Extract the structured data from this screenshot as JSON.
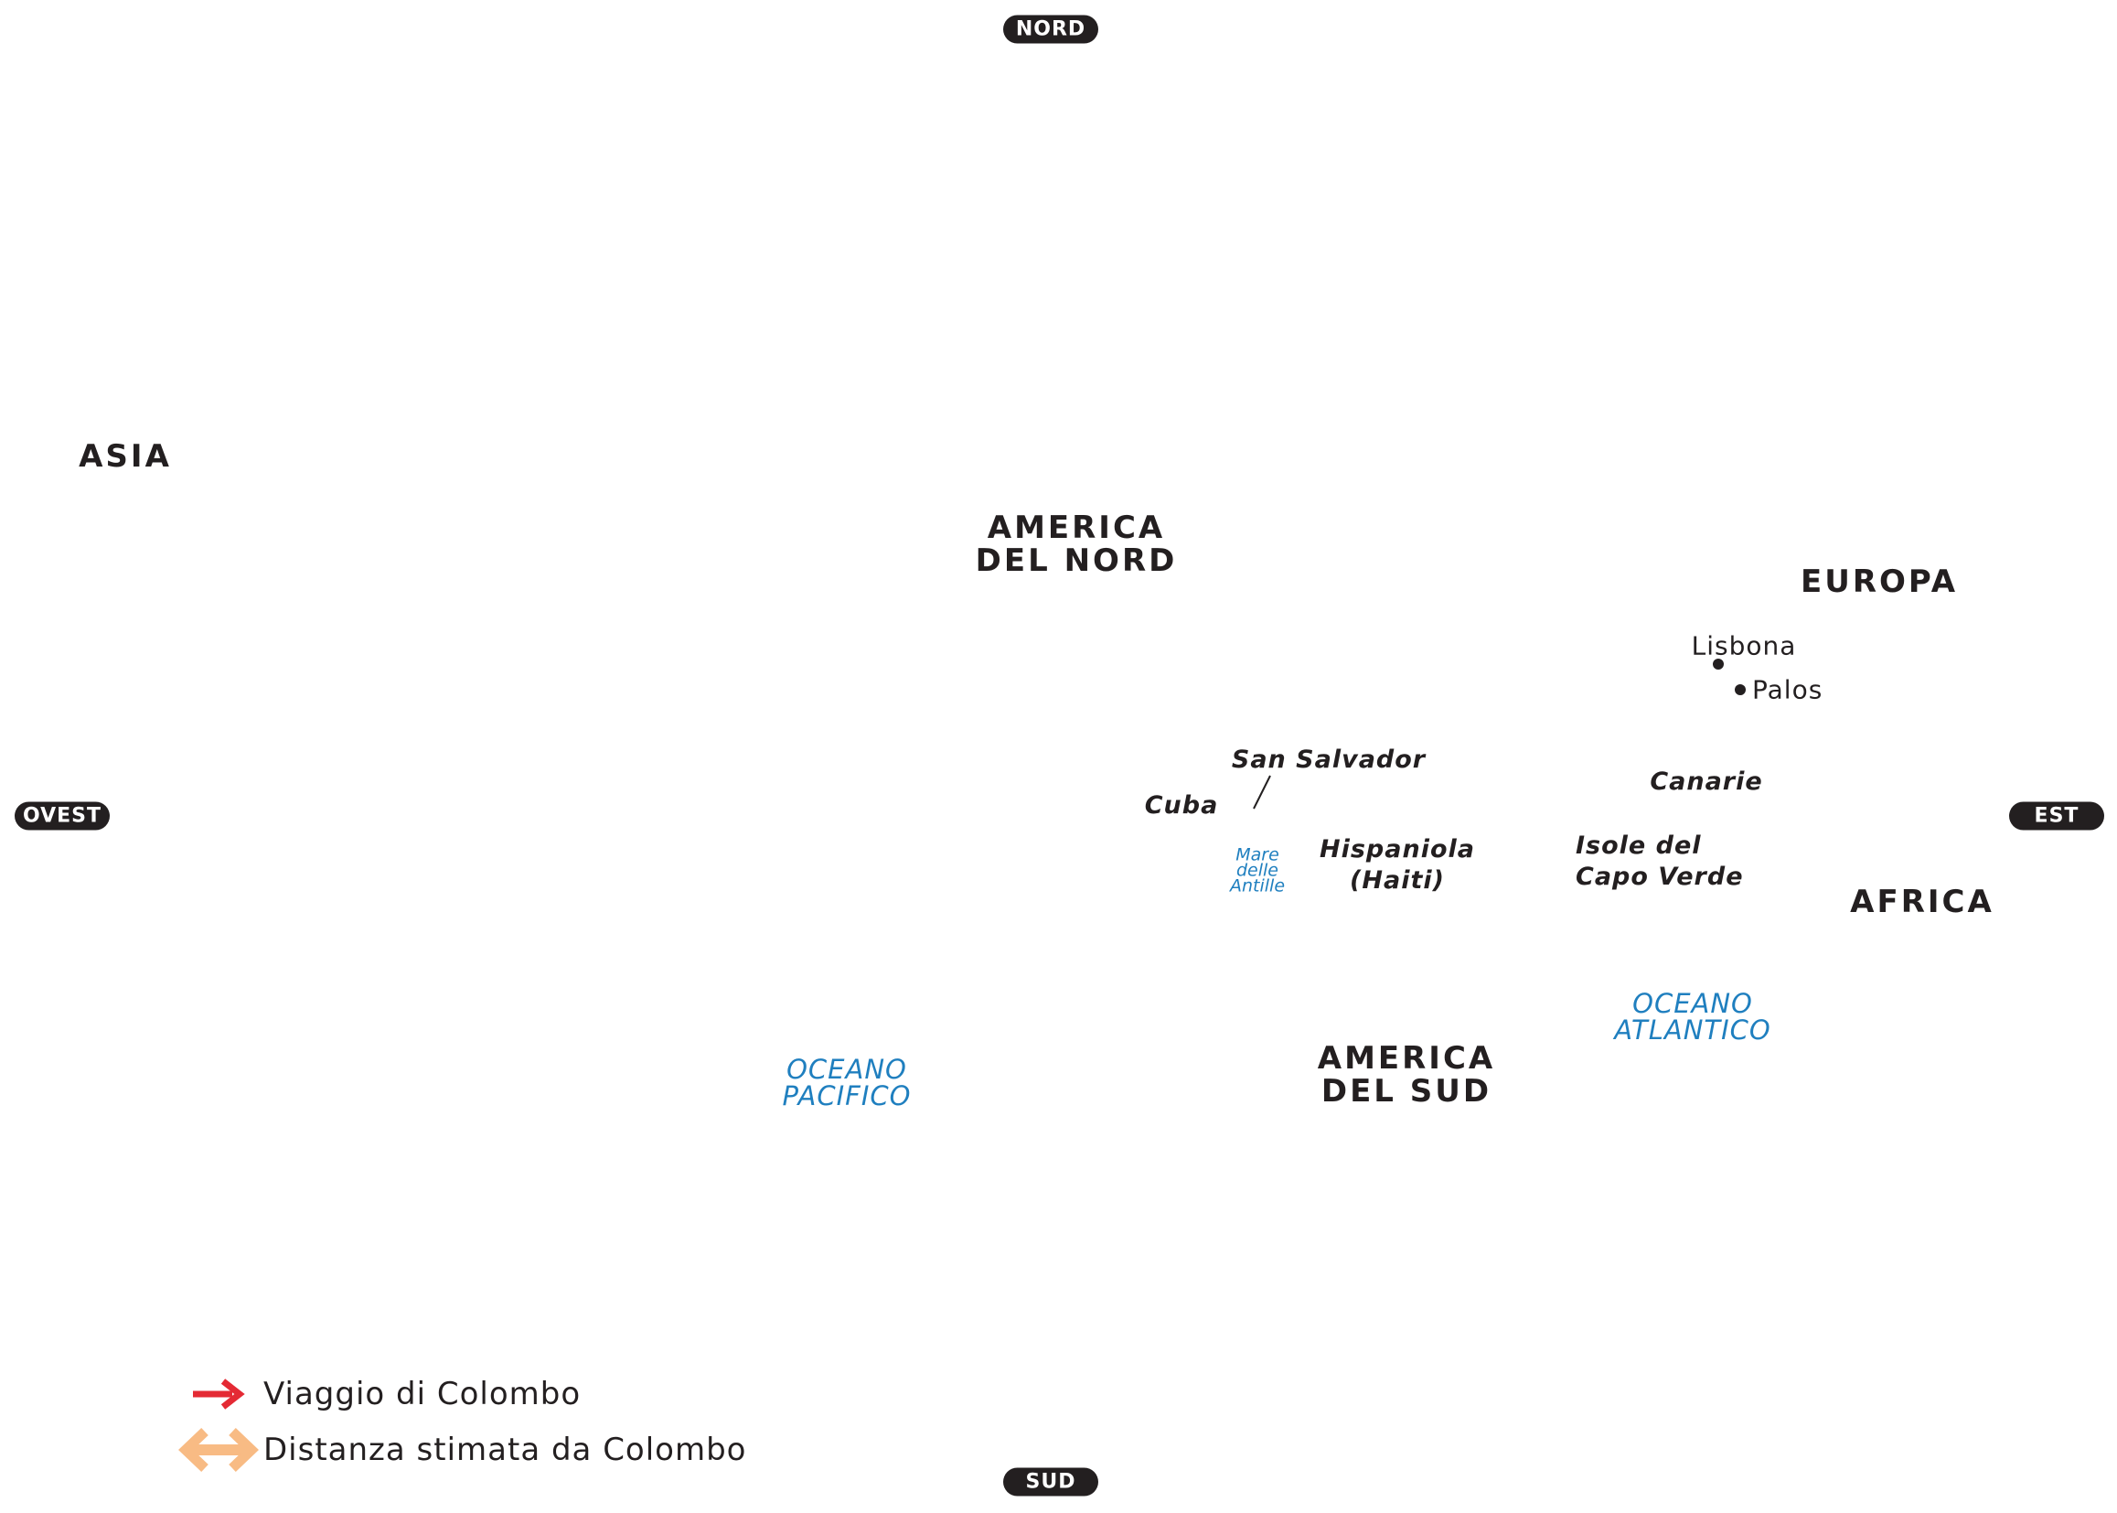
{
  "compass": {
    "north": "NORD",
    "south": "SUD",
    "west": "OVEST",
    "east": "EST"
  },
  "continents": {
    "asia": "ASIA",
    "north_america": [
      "AMERICA",
      "DEL NORD"
    ],
    "europe": "EUROPA",
    "africa": "AFRICA",
    "south_america": [
      "AMERICA",
      "DEL SUD"
    ]
  },
  "places": {
    "lisbon": "Lisbona",
    "palos": "Palos",
    "san_salvador": "San Salvador",
    "cuba": "Cuba",
    "hispaniola": [
      "Hispaniola",
      "(Haiti)"
    ],
    "canaries": "Canarie",
    "cape_verde": [
      "Isole del",
      "Capo Verde"
    ]
  },
  "seas": {
    "caribbean": [
      "Mare",
      "delle",
      "Antille"
    ],
    "atlantic": [
      "OCEANO",
      "ATLANTICO"
    ],
    "pacific": [
      "OCEANO",
      "PACIFICO"
    ]
  },
  "legend": {
    "voyage": "Viaggio di Colombo",
    "estimate": "Distanza stimata da Colombo"
  }
}
